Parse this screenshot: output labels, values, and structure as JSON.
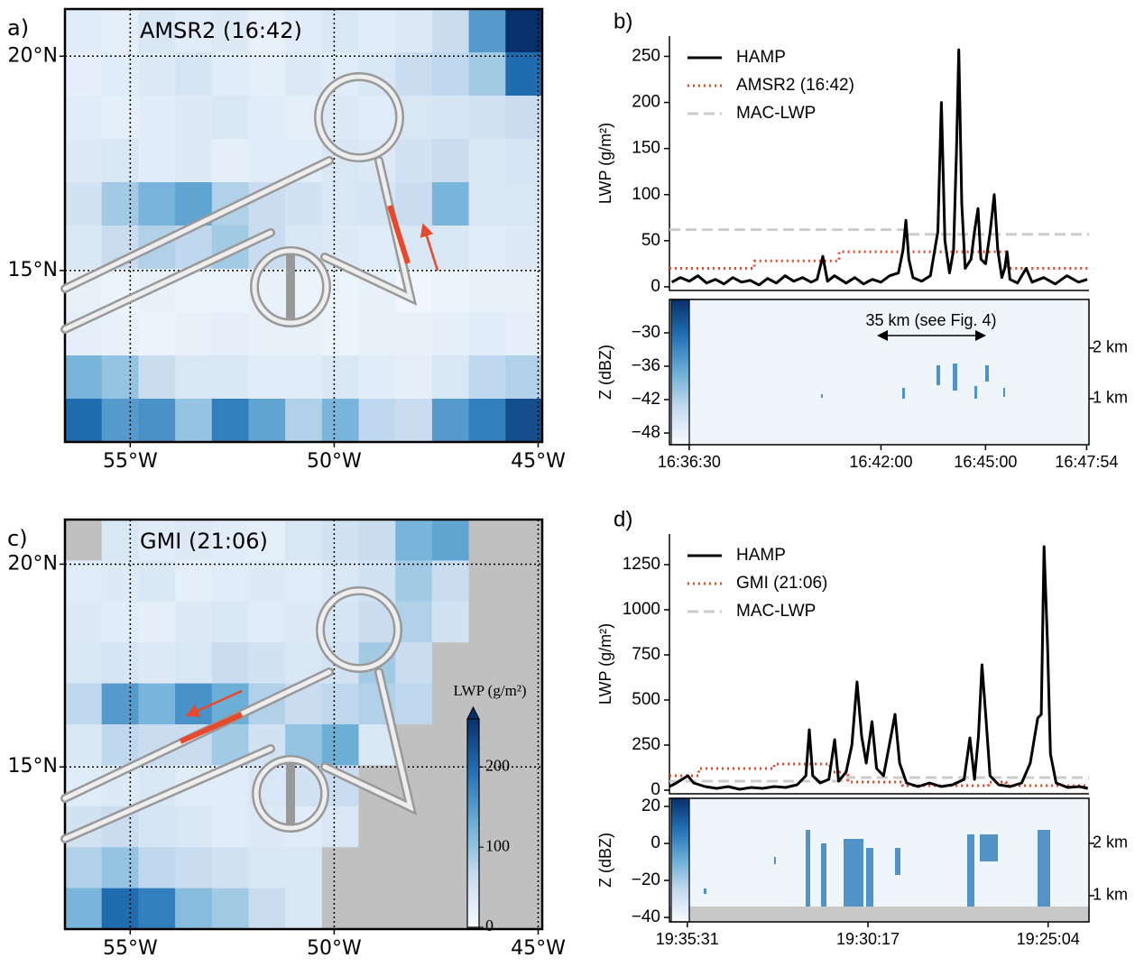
{
  "chart_data": [
    {
      "type": "heatmap",
      "label": "a)",
      "title": "AMSR2 (16:42)",
      "xlim": [
        -56.6,
        -44.9
      ],
      "ylim": [
        11.0,
        21.1
      ],
      "clim": [
        0,
        260
      ],
      "xticks": [
        {
          "value": -55,
          "label": "55°W"
        },
        {
          "value": -50,
          "label": "50°W"
        },
        {
          "value": -45,
          "label": "45°W"
        }
      ],
      "yticks": [
        {
          "value": 15,
          "label": "15°N"
        },
        {
          "value": 20,
          "label": "20°N"
        }
      ],
      "grid": true,
      "values": [
        [
          30,
          25,
          40,
          30,
          35,
          20,
          30,
          40,
          30,
          35,
          60,
          150,
          260
        ],
        [
          25,
          30,
          35,
          45,
          30,
          25,
          35,
          30,
          40,
          60,
          70,
          90,
          200
        ],
        [
          30,
          25,
          30,
          35,
          40,
          30,
          25,
          35,
          30,
          40,
          45,
          50,
          60
        ],
        [
          35,
          40,
          30,
          35,
          25,
          30,
          30,
          40,
          35,
          50,
          60,
          40,
          45
        ],
        [
          50,
          90,
          120,
          140,
          80,
          60,
          50,
          40,
          45,
          60,
          120,
          40,
          40
        ],
        [
          40,
          60,
          80,
          70,
          90,
          60,
          40,
          35,
          30,
          40,
          40,
          30,
          35
        ],
        [
          20,
          15,
          20,
          15,
          15,
          20,
          15,
          15,
          20,
          10,
          15,
          20,
          20
        ],
        [
          25,
          20,
          15,
          20,
          25,
          20,
          20,
          15,
          20,
          20,
          25,
          30,
          25
        ],
        [
          120,
          100,
          60,
          40,
          40,
          30,
          30,
          40,
          30,
          25,
          40,
          70,
          80
        ],
        [
          200,
          150,
          160,
          100,
          180,
          140,
          80,
          120,
          70,
          60,
          150,
          180,
          230
        ]
      ]
    },
    {
      "type": "line",
      "label": "b)",
      "xlim": [
        "16:35:56",
        "16:47:58"
      ],
      "ylim": [
        -4,
        272
      ],
      "yticks": [
        0,
        50,
        100,
        150,
        200,
        250
      ],
      "y_label": "LWP (g/m²)",
      "legend": "upper left",
      "xticks": [
        "16:36:30",
        "16:42:00",
        "16:45:00",
        "16:47:54"
      ],
      "series": [
        {
          "name": "HAMP",
          "color": "#000000",
          "linestyle": "solid",
          "x": [
            "16:36:00",
            "16:36:15",
            "16:36:30",
            "16:36:45",
            "16:37:00",
            "16:37:15",
            "16:37:30",
            "16:37:45",
            "16:38:00",
            "16:38:15",
            "16:38:30",
            "16:38:45",
            "16:39:00",
            "16:39:15",
            "16:39:30",
            "16:39:45",
            "16:40:00",
            "16:40:10",
            "16:40:20",
            "16:40:28",
            "16:40:40",
            "16:41:00",
            "16:41:15",
            "16:41:30",
            "16:41:45",
            "16:42:00",
            "16:42:15",
            "16:42:30",
            "16:42:38",
            "16:42:43",
            "16:42:48",
            "16:42:55",
            "16:43:10",
            "16:43:25",
            "16:43:38",
            "16:43:44",
            "16:43:50",
            "16:43:58",
            "16:44:05",
            "16:44:10",
            "16:44:14",
            "16:44:19",
            "16:44:25",
            "16:44:35",
            "16:44:41",
            "16:44:47",
            "16:44:52",
            "16:45:00",
            "16:45:08",
            "16:45:15",
            "16:45:21",
            "16:45:28",
            "16:45:33",
            "16:45:37",
            "16:45:42",
            "16:45:55",
            "16:46:10",
            "16:46:20",
            "16:46:40",
            "16:47:00",
            "16:47:20",
            "16:47:40",
            "16:47:55"
          ],
          "values": [
            5,
            10,
            6,
            12,
            4,
            8,
            3,
            10,
            5,
            7,
            2,
            9,
            4,
            12,
            6,
            10,
            5,
            8,
            33,
            6,
            12,
            4,
            10,
            3,
            8,
            5,
            12,
            15,
            40,
            72,
            30,
            10,
            6,
            12,
            60,
            200,
            50,
            15,
            40,
            150,
            257,
            90,
            20,
            30,
            60,
            85,
            30,
            25,
            60,
            100,
            40,
            10,
            20,
            38,
            8,
            4,
            20,
            5,
            10,
            3,
            12,
            5,
            8
          ]
        },
        {
          "name": "AMSR2 (16:42)",
          "color": "#e8482b",
          "linestyle": "dotted",
          "x": [
            "16:35:56",
            "16:38:22",
            "16:38:22",
            "16:40:48",
            "16:40:48",
            "16:45:37",
            "16:45:37",
            "16:47:58"
          ],
          "values": [
            20,
            20,
            28,
            28,
            38,
            38,
            20,
            20
          ]
        },
        {
          "name": "MAC-LWP",
          "color": "#cccccc",
          "linestyle": "dashed",
          "x": [
            "16:35:56",
            "16:42:49",
            "16:42:49",
            "16:47:58"
          ],
          "values": [
            62,
            62,
            57,
            57
          ]
        }
      ],
      "radar": {
        "y_label": "Z (dBZ)",
        "ylim": [
          -50.1,
          -24
        ],
        "yticks": [
          {
            "value": -30,
            "label": "−30"
          },
          {
            "value": -36,
            "label": "−36"
          },
          {
            "value": -42,
            "label": "−42"
          },
          {
            "value": -48,
            "label": "−48"
          }
        ],
        "y2lim": [
          0.09,
          2.96
        ],
        "y2ticks": [
          {
            "value": 2,
            "label": "2 km"
          },
          {
            "value": 1,
            "label": "1 km"
          }
        ],
        "annotation": "35 km (see Fig. 4)"
      }
    },
    {
      "type": "heatmap",
      "label": "c)",
      "title": "GMI (21:06)",
      "xlim": [
        -56.6,
        -44.9
      ],
      "ylim": [
        11.0,
        21.1
      ],
      "clim": [
        0,
        260
      ],
      "xticks": [
        {
          "value": -55,
          "label": "55°W"
        },
        {
          "value": -50,
          "label": "50°W"
        },
        {
          "value": -45,
          "label": "45°W"
        }
      ],
      "yticks": [
        {
          "value": 15,
          "label": "15°N"
        },
        {
          "value": 20,
          "label": "20°N"
        }
      ],
      "grid": true,
      "colorbar": {
        "label": "LWP (g/m²)",
        "ticks": [
          0,
          100,
          200
        ]
      },
      "values": [
        [
          null,
          40,
          30,
          35,
          30,
          25,
          40,
          50,
          60,
          120,
          140,
          null,
          null
        ],
        [
          30,
          35,
          40,
          25,
          30,
          35,
          30,
          40,
          50,
          90,
          60,
          null,
          null
        ],
        [
          35,
          30,
          25,
          35,
          40,
          30,
          35,
          45,
          60,
          80,
          50,
          null,
          null
        ],
        [
          40,
          45,
          35,
          40,
          60,
          50,
          40,
          50,
          90,
          60,
          null,
          null,
          null
        ],
        [
          70,
          150,
          120,
          160,
          130,
          80,
          60,
          70,
          80,
          70,
          null,
          null,
          null
        ],
        [
          40,
          70,
          60,
          60,
          90,
          50,
          100,
          130,
          40,
          null,
          null,
          null,
          null
        ],
        [
          30,
          35,
          40,
          30,
          30,
          40,
          50,
          60,
          null,
          null,
          null,
          null,
          null
        ],
        [
          50,
          60,
          45,
          40,
          30,
          35,
          30,
          40,
          null,
          null,
          null,
          null,
          null
        ],
        [
          80,
          100,
          70,
          60,
          50,
          40,
          40,
          null,
          null,
          null,
          null,
          null,
          null
        ],
        [
          120,
          200,
          180,
          110,
          90,
          60,
          40,
          null,
          null,
          null,
          null,
          null,
          null
        ]
      ]
    },
    {
      "type": "line",
      "label": "d)",
      "xlim": [
        "19:36:02",
        "19:23:53"
      ],
      "ylim": [
        -20,
        1420
      ],
      "yticks": [
        0,
        250,
        500,
        750,
        1000,
        1250
      ],
      "y_label": "LWP (g/m²)",
      "legend": "upper left",
      "xticks": [
        "19:35:31",
        "19:30:17",
        "19:25:04"
      ],
      "series": [
        {
          "name": "HAMP",
          "color": "#000000",
          "linestyle": "solid",
          "x": [
            "19:36:02",
            "19:35:50",
            "19:35:40",
            "19:35:30",
            "19:35:20",
            "19:35:00",
            "19:34:40",
            "19:34:20",
            "19:34:00",
            "19:33:40",
            "19:33:20",
            "19:33:00",
            "19:32:40",
            "19:32:20",
            "19:32:05",
            "19:31:59",
            "19:31:53",
            "19:31:40",
            "19:31:25",
            "19:31:15",
            "19:31:08",
            "19:30:55",
            "19:30:45",
            "19:30:36",
            "19:30:28",
            "19:30:20",
            "19:30:10",
            "19:30:02",
            "19:29:50",
            "19:29:40",
            "19:29:30",
            "19:29:22",
            "19:29:10",
            "19:28:50",
            "19:28:30",
            "19:28:10",
            "19:27:50",
            "19:27:30",
            "19:27:20",
            "19:27:12",
            "19:27:05",
            "19:26:59",
            "19:26:52",
            "19:26:45",
            "19:26:30",
            "19:26:10",
            "19:25:50",
            "19:25:35",
            "19:25:22",
            "19:25:16",
            "19:25:11",
            "19:25:05",
            "19:25:00",
            "19:24:50",
            "19:24:30",
            "19:24:10",
            "19:23:55"
          ],
          "values": [
            20,
            40,
            60,
            80,
            40,
            20,
            10,
            20,
            5,
            15,
            10,
            20,
            15,
            30,
            80,
            335,
            80,
            40,
            60,
            280,
            50,
            100,
            250,
            600,
            300,
            150,
            380,
            120,
            80,
            250,
            420,
            150,
            40,
            20,
            40,
            20,
            30,
            60,
            290,
            60,
            300,
            695,
            400,
            80,
            30,
            20,
            40,
            150,
            400,
            420,
            1350,
            800,
            200,
            40,
            15,
            20,
            10
          ]
        },
        {
          "name": "GMI (21:06)",
          "color": "#e8482b",
          "linestyle": "dotted",
          "x": [
            "19:36:02",
            "19:35:11",
            "19:35:11",
            "19:33:00",
            "19:33:00",
            "19:31:23",
            "19:31:23",
            "19:30:52",
            "19:30:52",
            "19:29:17",
            "19:29:17",
            "19:26:48",
            "19:26:48",
            "19:26:17",
            "19:26:17",
            "19:23:53"
          ],
          "values": [
            80,
            80,
            120,
            120,
            145,
            145,
            100,
            100,
            45,
            45,
            25,
            25,
            45,
            45,
            25,
            25
          ]
        },
        {
          "name": "MAC-LWP",
          "color": "#cccccc",
          "linestyle": "dashed",
          "x": [
            "19:36:02",
            "19:30:52",
            "19:30:52",
            "19:23:53"
          ],
          "values": [
            50,
            50,
            70,
            70
          ]
        }
      ],
      "radar": {
        "y_label": "Z (dBZ)",
        "ylim": [
          -42.4,
          24.4
        ],
        "yticks": [
          20,
          0,
          {
            "value": -20,
            "label": "−20"
          },
          {
            "value": -40,
            "label": "−40"
          }
        ],
        "y2lim": [
          0.5,
          2.86
        ],
        "y2ticks": [
          {
            "value": 2,
            "label": "2 km"
          },
          {
            "value": 1,
            "label": "1 km"
          }
        ]
      }
    }
  ]
}
